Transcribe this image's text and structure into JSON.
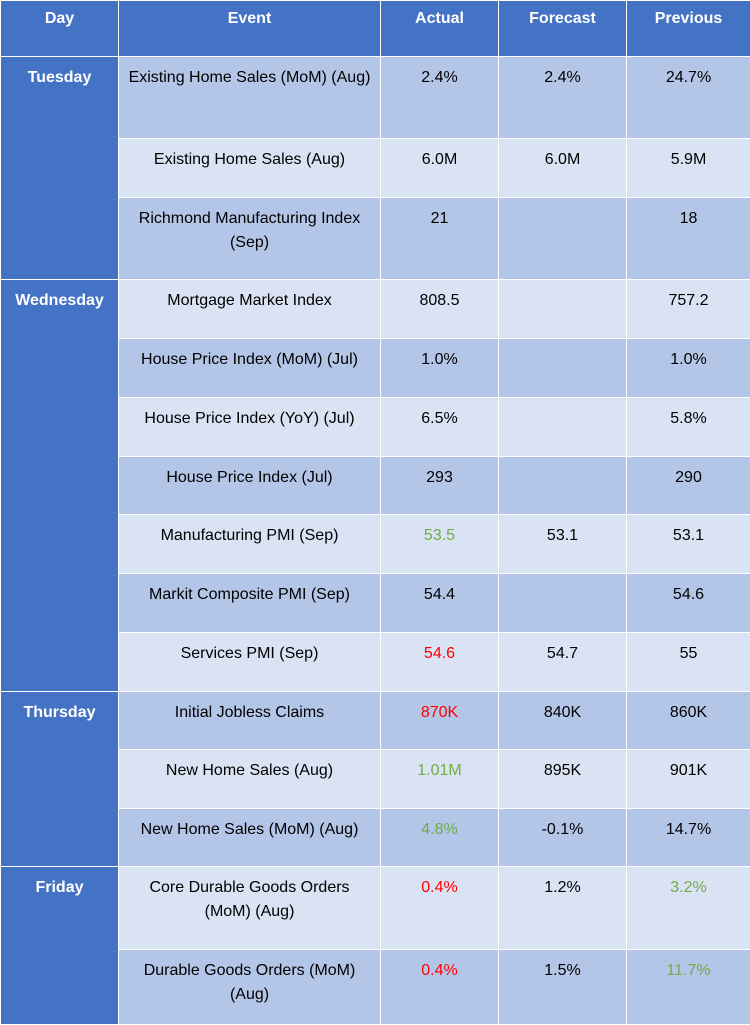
{
  "colors": {
    "header_bg": "#4472c4",
    "row_dark": "#b4c6e7",
    "row_light": "#dae3f3",
    "positive": "#70ad47",
    "negative": "#ff0000"
  },
  "headers": [
    "Day",
    "Event",
    "Actual",
    "Forecast",
    "Previous"
  ],
  "days": [
    "Tuesday",
    "Wednesday",
    "Thursday",
    "Friday"
  ],
  "rows": [
    {
      "event": "Existing Home Sales (MoM) (Aug)",
      "actual": "2.4%",
      "forecast": "2.4%",
      "previous": "24.7%"
    },
    {
      "event": "Existing Home Sales (Aug)",
      "actual": "6.0M",
      "forecast": "6.0M",
      "previous": "5.9M"
    },
    {
      "event": "Richmond Manufacturing Index (Sep)",
      "actual": "21",
      "forecast": "",
      "previous": "18"
    },
    {
      "event": "Mortgage Market Index",
      "actual": "808.5",
      "forecast": "",
      "previous": "757.2"
    },
    {
      "event": "House Price Index (MoM) (Jul)",
      "actual": "1.0%",
      "forecast": "",
      "previous": "1.0%"
    },
    {
      "event": "House Price Index (YoY) (Jul)",
      "actual": "6.5%",
      "forecast": "",
      "previous": "5.8%"
    },
    {
      "event": "House Price Index (Jul)",
      "actual": "293",
      "forecast": "",
      "previous": "290"
    },
    {
      "event": "Manufacturing PMI (Sep)",
      "actual": "53.5",
      "forecast": "53.1",
      "previous": "53.1"
    },
    {
      "event": "Markit Composite PMI (Sep)",
      "actual": "54.4",
      "forecast": "",
      "previous": "54.6"
    },
    {
      "event": "Services PMI (Sep)",
      "actual": "54.6",
      "forecast": "54.7",
      "previous": "55"
    },
    {
      "event": "Initial Jobless Claims",
      "actual": "870K",
      "forecast": "840K",
      "previous": "860K"
    },
    {
      "event": "New Home Sales (Aug)",
      "actual": "1.01M",
      "forecast": "895K",
      "previous": "901K"
    },
    {
      "event": "New Home Sales (MoM) (Aug)",
      "actual": "4.8%",
      "forecast": "-0.1%",
      "previous": "14.7%"
    },
    {
      "event": "Core Durable Goods Orders (MoM) (Aug)",
      "actual": "0.4%",
      "forecast": "1.2%",
      "previous": "3.2%"
    },
    {
      "event": "Durable Goods Orders (MoM) (Aug)",
      "actual": "0.4%",
      "forecast": "1.5%",
      "previous": "11.7%"
    }
  ]
}
